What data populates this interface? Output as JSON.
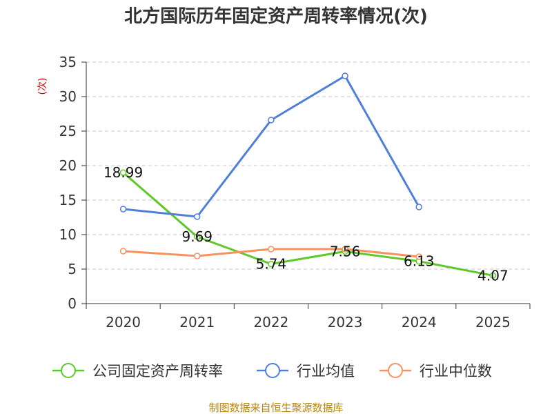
{
  "chart_data": {
    "type": "line",
    "title": "北方国际历年固定资产周转率情况(次)",
    "ylabel": "(次)",
    "xlabel": "",
    "ylim": [
      0,
      35
    ],
    "yticks": [
      0,
      5,
      10,
      15,
      20,
      25,
      30,
      35
    ],
    "categories": [
      "2020",
      "2021",
      "2022",
      "2023",
      "2024",
      "2025"
    ],
    "grid": true,
    "legend_position": "bottom",
    "series": [
      {
        "name": "公司固定资产周转率",
        "color": "#5cc926",
        "values": [
          18.99,
          9.69,
          5.74,
          7.56,
          6.13,
          4.07
        ],
        "labels": [
          "18.99",
          "9.69",
          "5.74",
          "7.56",
          "6.13",
          "4.07"
        ]
      },
      {
        "name": "行业均值",
        "color": "#4f7fdc",
        "values": [
          13.7,
          12.6,
          26.6,
          33.0,
          14.0,
          null
        ]
      },
      {
        "name": "行业中位数",
        "color": "#f7925d",
        "values": [
          7.6,
          6.9,
          7.9,
          7.9,
          6.8,
          null
        ]
      }
    ],
    "source": "制图数据来自恒生聚源数据库"
  }
}
